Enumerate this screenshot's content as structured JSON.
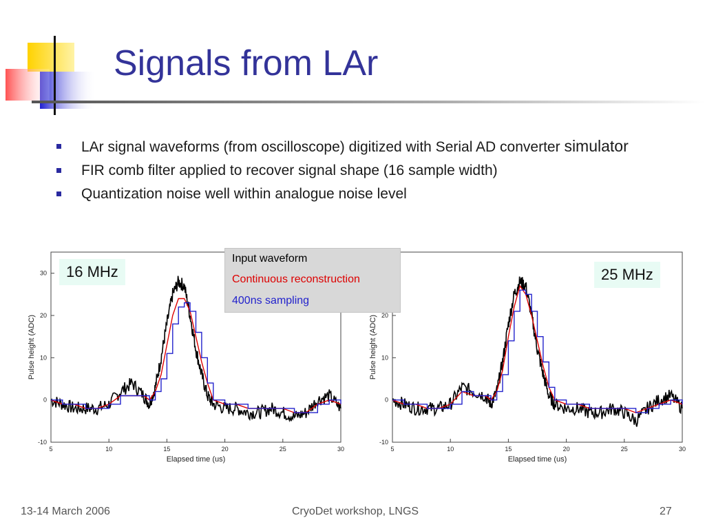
{
  "slide": {
    "title": "Signals from LAr",
    "bullets": [
      {
        "text": "LAr signal waveforms (from oscilloscope) digitized with Serial AD converter ",
        "tail": "simulator"
      },
      {
        "text": "FIR comb filter applied to recover signal shape (16 sample width)"
      },
      {
        "text": "Quantization noise well within analogue noise level"
      }
    ],
    "legend": {
      "input": "Input waveform",
      "continuous": "Continuous reconstruction",
      "sampled": "400ns sampling"
    },
    "footer": {
      "date": "13-14 March 2006",
      "venue": "CryoDet workshop, LNGS",
      "page": "27"
    },
    "colors": {
      "title": "#333399",
      "bullet": "#2a2aa0",
      "input": "#000000",
      "continuous": "#dd0000",
      "sampled": "#2222cc"
    }
  },
  "chart_data": [
    {
      "type": "line",
      "annotation": "16 MHz",
      "xlabel": "Elapsed time (us)",
      "ylabel": "Pulse height (ADC)",
      "xlim": [
        5,
        30
      ],
      "ylim": [
        -10,
        35
      ],
      "xticks": [
        5,
        10,
        15,
        20,
        25,
        30
      ],
      "yticks": [
        -10,
        0,
        10,
        20,
        30
      ],
      "series": [
        {
          "x": [
            5,
            6,
            7,
            8,
            9,
            10,
            11,
            12,
            13,
            13.5,
            14,
            14.5,
            15,
            15.5,
            16,
            16.5,
            17,
            17.5,
            18,
            18.5,
            19,
            20,
            21,
            22,
            23,
            24,
            25,
            26,
            27,
            28,
            29,
            30
          ],
          "y": [
            0,
            -1,
            -2,
            -2,
            -2,
            -1,
            2,
            4,
            1,
            -1,
            3,
            10,
            18,
            25,
            28,
            27,
            20,
            12,
            6,
            1,
            -1,
            -2,
            -2,
            -3,
            -3,
            -2,
            -3,
            -4,
            -3,
            0,
            1,
            -2
          ]
        },
        {
          "x": [
            5,
            6,
            7,
            8,
            9,
            10,
            11,
            12,
            13,
            13.5,
            14,
            14.5,
            15,
            15.5,
            16,
            16.5,
            17,
            17.5,
            18,
            18.5,
            19,
            20,
            21,
            22,
            23,
            24,
            25,
            26,
            27,
            28,
            29,
            30
          ],
          "y": [
            0,
            -1,
            -1,
            -2,
            -2,
            -1,
            1,
            1,
            1,
            0,
            2,
            6,
            13,
            20,
            24,
            24,
            21,
            15,
            9,
            4,
            0,
            -1,
            -1,
            -2,
            -2,
            -2,
            -2,
            -3,
            -3,
            -1,
            0,
            -1
          ]
        },
        {
          "x": [
            5,
            6,
            7,
            8,
            9,
            10,
            11,
            12,
            13,
            13.5,
            14,
            14.5,
            15,
            15.5,
            16,
            16.5,
            17,
            17.5,
            18,
            18.5,
            19,
            20,
            21,
            22,
            23,
            24,
            25,
            26,
            27,
            28,
            29,
            30
          ],
          "y": [
            0,
            -1,
            -1,
            -2,
            -2,
            -1,
            1,
            1,
            1,
            0,
            2,
            5,
            11,
            18,
            22,
            23,
            21,
            16,
            10,
            4,
            0,
            -1,
            -1,
            -2,
            -2,
            -2,
            -2,
            -3,
            -3,
            -1,
            0,
            -1
          ]
        }
      ]
    },
    {
      "type": "line",
      "annotation": "25 MHz",
      "xlabel": "Elapsed time (us)",
      "ylabel": "Pulse height (ADC)",
      "xlim": [
        5,
        30
      ],
      "ylim": [
        -10,
        35
      ],
      "xticks": [
        5,
        10,
        15,
        20,
        25,
        30
      ],
      "yticks": [
        -10,
        0,
        10,
        20,
        30
      ],
      "series": [
        {
          "x": [
            5,
            6,
            7,
            8,
            9,
            10,
            11,
            12,
            13,
            13.5,
            14,
            14.5,
            15,
            15.5,
            16,
            16.5,
            17,
            17.5,
            18,
            18.5,
            19,
            20,
            21,
            22,
            23,
            24,
            25,
            26,
            27,
            28,
            29,
            30
          ],
          "y": [
            0,
            -1,
            -2,
            -2,
            -2,
            -1,
            3,
            2,
            1,
            -1,
            2,
            9,
            18,
            25,
            28,
            27,
            20,
            12,
            6,
            1,
            -1,
            -2,
            -2,
            -3,
            -3,
            -2,
            -3,
            -5,
            -2,
            0,
            1,
            -2
          ]
        },
        {
          "x": [
            5,
            6,
            7,
            8,
            9,
            10,
            11,
            12,
            13,
            13.5,
            14,
            14.5,
            15,
            15.5,
            16,
            16.5,
            17,
            17.5,
            18,
            18.5,
            19,
            20,
            21,
            22,
            23,
            24,
            25,
            26,
            27,
            28,
            29,
            30
          ],
          "y": [
            0,
            -1,
            -1,
            -2,
            -2,
            -1,
            2,
            1,
            1,
            0,
            2,
            7,
            15,
            22,
            27,
            25,
            20,
            14,
            8,
            3,
            0,
            -1,
            -1,
            -2,
            -2,
            -2,
            -2,
            -3,
            -2,
            -1,
            0,
            -1
          ]
        },
        {
          "x": [
            5,
            6,
            7,
            8,
            9,
            10,
            11,
            12,
            13,
            13.5,
            14,
            14.5,
            15,
            15.5,
            16,
            16.5,
            17,
            17.5,
            18,
            18.5,
            19,
            20,
            21,
            22,
            23,
            24,
            25,
            26,
            27,
            28,
            29,
            30
          ],
          "y": [
            0,
            -1,
            -1,
            -2,
            -2,
            -1,
            2,
            1,
            1,
            0,
            2,
            6,
            14,
            21,
            26,
            25,
            21,
            15,
            9,
            3,
            0,
            -1,
            -1,
            -2,
            -2,
            -2,
            -2,
            -3,
            -2,
            -1,
            0,
            -1
          ]
        }
      ]
    }
  ]
}
